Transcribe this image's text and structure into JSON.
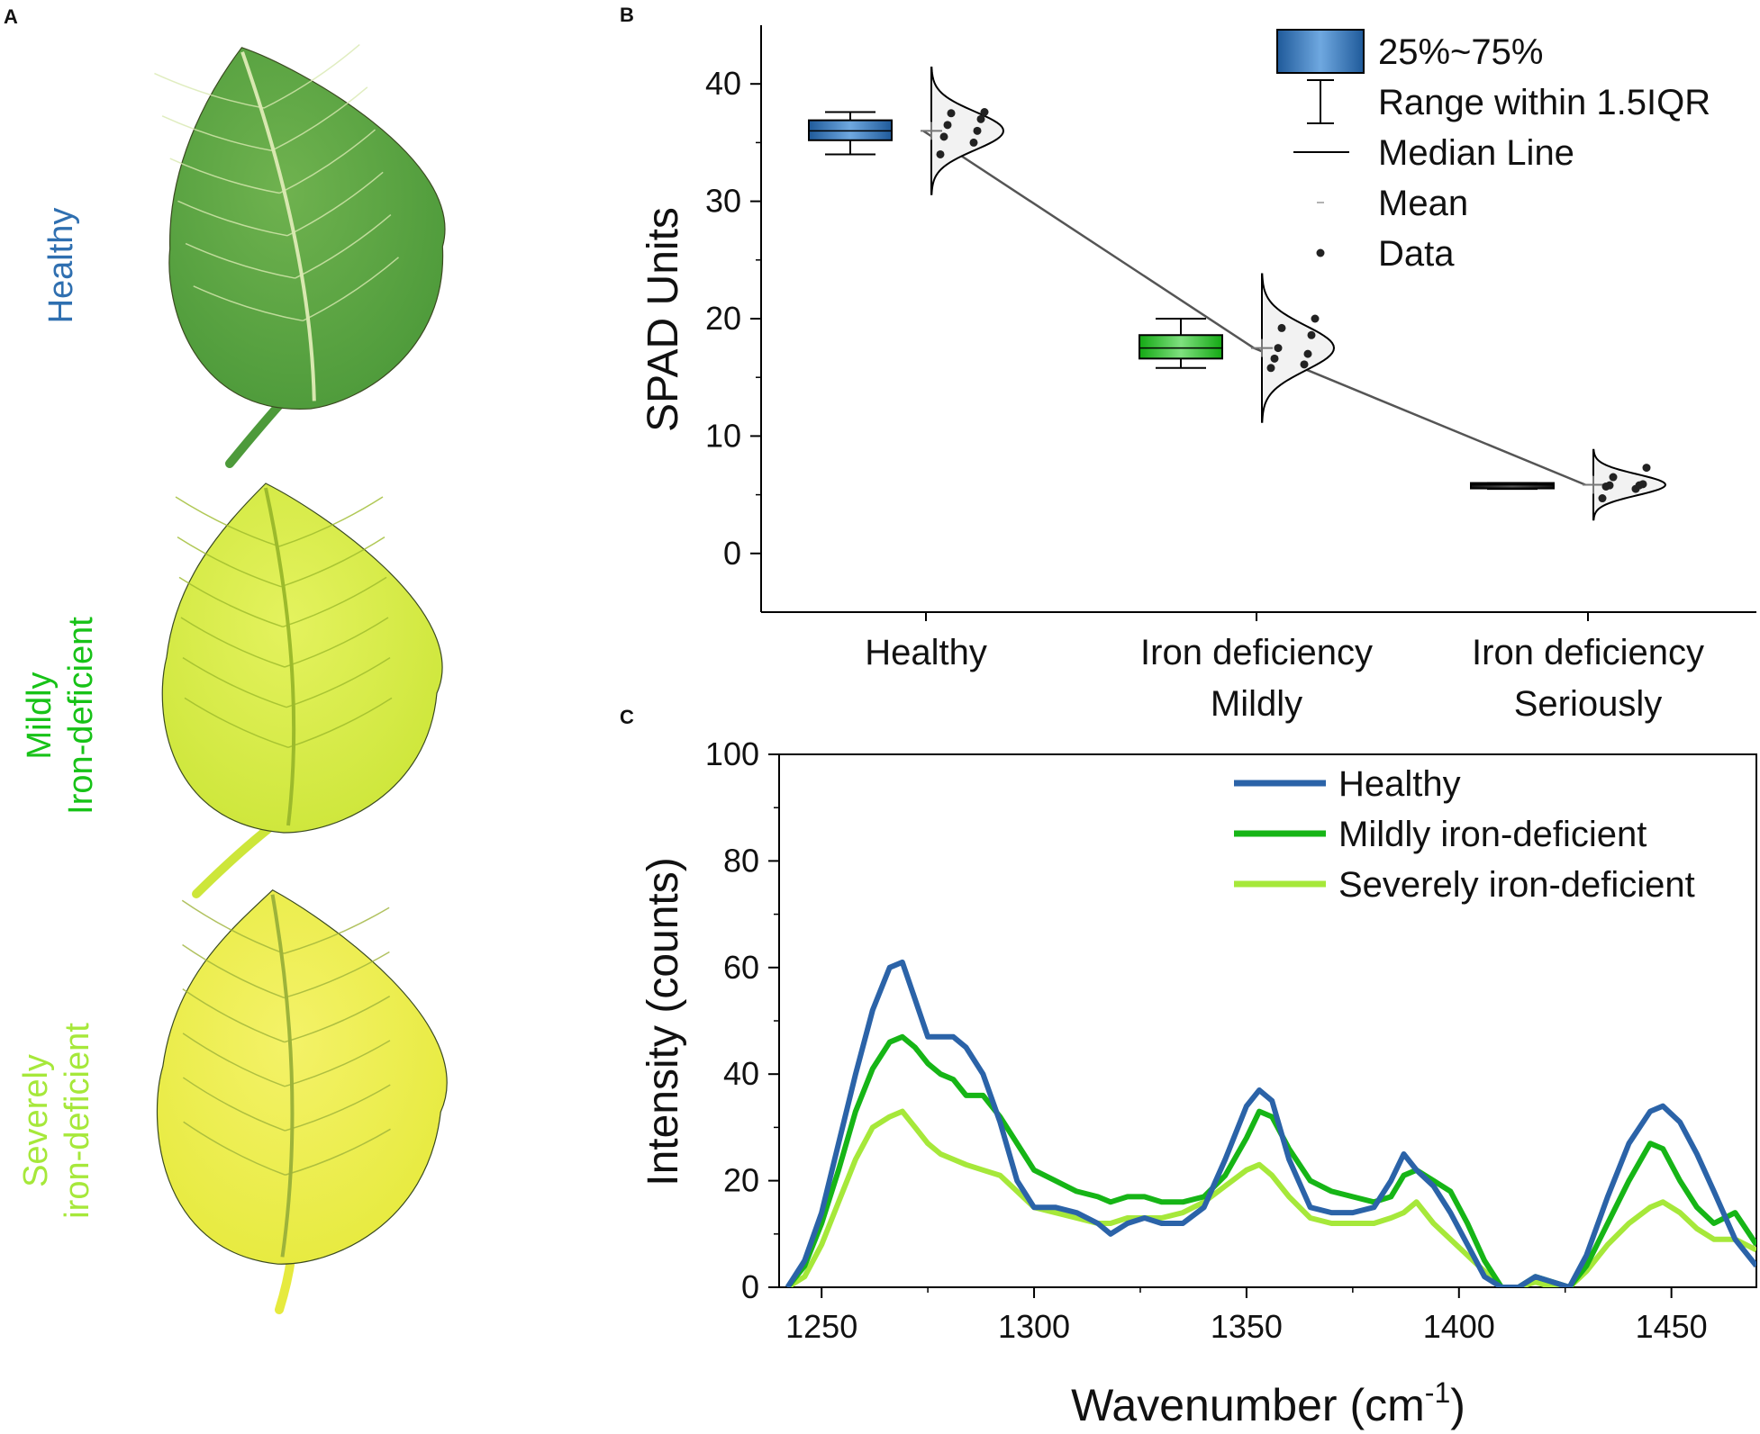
{
  "panel_labels": {
    "a": "A",
    "b": "B",
    "c": "C"
  },
  "leaves": [
    {
      "label_lines": [
        "Healthy"
      ],
      "color": "#2f6fb0",
      "fill": "#4d9a3a",
      "fill_light": "#6fb24f",
      "vein": "#d8e8b0"
    },
    {
      "label_lines": [
        "Mildly",
        "Iron-deficient"
      ],
      "color": "#17c217",
      "fill": "#cde63a",
      "fill_light": "#e4f25e",
      "vein": "#9cba2c"
    },
    {
      "label_lines": [
        "Severely",
        "iron-deficient"
      ],
      "color": "#a6e83a",
      "fill": "#e6ea3e",
      "fill_light": "#f4f268",
      "vein": "#9db33a"
    }
  ],
  "chart_data": [
    {
      "type": "box",
      "ylabel": "SPAD Units",
      "ylim": [
        -5,
        45
      ],
      "yticks": [
        0,
        10,
        20,
        30,
        40
      ],
      "categories": [
        {
          "lines": [
            "Healthy"
          ]
        },
        {
          "lines": [
            "Iron deficiency",
            "Mildly"
          ]
        },
        {
          "lines": [
            "Iron deficiency",
            "Seriously"
          ]
        }
      ],
      "groups": [
        {
          "q1": 35.2,
          "q3": 36.9,
          "median": 36.0,
          "mean": 36.0,
          "whisker_low": 34.0,
          "whisker_high": 37.6,
          "box_color": "#1f5a9a",
          "box_light": "#6fa8e0",
          "data": [
            34.0,
            35.0,
            35.5,
            36.0,
            36.5,
            37.0,
            37.5,
            37.6
          ]
        },
        {
          "q1": 16.6,
          "q3": 18.6,
          "median": 17.5,
          "mean": 17.5,
          "whisker_low": 15.8,
          "whisker_high": 20.0,
          "box_color": "#13a813",
          "box_light": "#7fe07f",
          "data": [
            15.8,
            16.1,
            16.6,
            17.0,
            17.5,
            18.6,
            19.2,
            20.0
          ]
        },
        {
          "q1": 5.7,
          "q3": 6.0,
          "median": 5.85,
          "mean": 5.85,
          "whisker_low": 5.5,
          "whisker_high": 6.0,
          "box_color": "#111111",
          "box_light": "#555555",
          "data": [
            4.7,
            5.5,
            5.7,
            5.8,
            5.8,
            5.9,
            6.5,
            7.3
          ]
        }
      ],
      "mean_line": [
        36.0,
        17.5,
        5.85
      ],
      "legend": {
        "box": "25%~75%",
        "whisker": "Range within 1.5IQR",
        "median": "Median Line",
        "mean": "Mean",
        "data": "Data"
      }
    },
    {
      "type": "line",
      "xlabel": "Wavenumber (cm",
      "xlabel_sup": "-1",
      "xlabel_end": ")",
      "ylabel": "Intensity (counts)",
      "xlim": [
        1240,
        1470
      ],
      "ylim": [
        0,
        100
      ],
      "xticks": [
        1250,
        1300,
        1350,
        1400,
        1450
      ],
      "yticks": [
        0,
        20,
        40,
        60,
        80,
        100
      ],
      "x": [
        1242,
        1246,
        1250,
        1254,
        1258,
        1262,
        1266,
        1269,
        1272,
        1275,
        1278,
        1281,
        1284,
        1288,
        1292,
        1296,
        1300,
        1305,
        1310,
        1315,
        1318,
        1322,
        1326,
        1330,
        1335,
        1340,
        1345,
        1350,
        1353,
        1356,
        1360,
        1365,
        1370,
        1375,
        1380,
        1384,
        1387,
        1390,
        1394,
        1398,
        1402,
        1406,
        1410,
        1414,
        1418,
        1422,
        1426,
        1430,
        1435,
        1440,
        1445,
        1448,
        1452,
        1456,
        1460,
        1465,
        1470
      ],
      "series": [
        {
          "name": "Healthy",
          "color": "#2b63a8",
          "values": [
            0,
            5,
            14,
            27,
            40,
            52,
            60,
            61,
            54,
            47,
            47,
            47,
            45,
            40,
            31,
            20,
            15,
            15,
            14,
            12,
            10,
            12,
            13,
            12,
            12,
            15,
            24,
            34,
            37,
            35,
            24,
            15,
            14,
            14,
            15,
            20,
            25,
            22,
            19,
            14,
            8,
            2,
            0,
            0,
            2,
            1,
            0,
            6,
            17,
            27,
            33,
            34,
            31,
            25,
            18,
            9,
            4
          ]
        },
        {
          "name": "Mildly iron-deficient",
          "color": "#16b516",
          "values": [
            0,
            4,
            12,
            22,
            33,
            41,
            46,
            47,
            45,
            42,
            40,
            39,
            36,
            36,
            32,
            27,
            22,
            20,
            18,
            17,
            16,
            17,
            17,
            16,
            16,
            17,
            21,
            28,
            33,
            32,
            26,
            20,
            18,
            17,
            16,
            17,
            21,
            22,
            20,
            18,
            12,
            5,
            0,
            0,
            2,
            1,
            0,
            4,
            12,
            20,
            27,
            26,
            20,
            15,
            12,
            14,
            8
          ]
        },
        {
          "name": "Severely iron-deficient",
          "color": "#a6e83a",
          "values": [
            0,
            2,
            8,
            16,
            24,
            30,
            32,
            33,
            30,
            27,
            25,
            24,
            23,
            22,
            21,
            18,
            15,
            14,
            13,
            12,
            12,
            13,
            13,
            13,
            14,
            16,
            19,
            22,
            23,
            21,
            17,
            13,
            12,
            12,
            12,
            13,
            14,
            16,
            12,
            9,
            6,
            3,
            0,
            0,
            1,
            0,
            0,
            3,
            8,
            12,
            15,
            16,
            14,
            11,
            9,
            9,
            7
          ]
        }
      ]
    }
  ]
}
